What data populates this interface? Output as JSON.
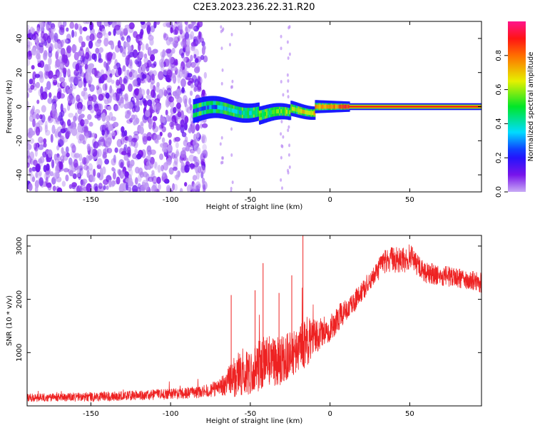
{
  "title": "C2E3.2023.236.22.31.R20",
  "colors": {
    "snr_line": "#ee2222",
    "noise_low": "#d9c4f7",
    "noise_high": "#7a1fe8",
    "band_core": "#ff1a1a",
    "band_edge": "#1a1aff"
  },
  "chart_data": [
    {
      "type": "heatmap",
      "xlabel": "Height of straight line (km)",
      "ylabel": "Frequency (Hz)",
      "xlim": [
        -190,
        95
      ],
      "ylim": [
        -50,
        50
      ],
      "xticks": [
        -150,
        -100,
        -50,
        0,
        50
      ],
      "yticks": [
        -40,
        -20,
        0,
        20,
        40
      ],
      "colorbar": {
        "label": "Normalized spectral amplitude",
        "range": [
          0.0,
          1.0
        ],
        "ticks": [
          0.0,
          0.2,
          0.4,
          0.6,
          0.8
        ],
        "colormap": "rainbow (violet to red)"
      },
      "description_regions": [
        {
          "x_range": [
            -190,
            -80
          ],
          "content": "broadband low-amplitude noise (violet)"
        },
        {
          "x_range": [
            -85,
            12
          ],
          "content": "narrow band near 0 Hz, amplitude rising from ~0.2 to ~0.9"
        },
        {
          "x_range": [
            12,
            95
          ],
          "content": "steady tone at 0 Hz, amplitude ~0.9"
        }
      ]
    },
    {
      "type": "line",
      "xlabel": "Height of straight line (km)",
      "ylabel": "SNR (10 * v/v)",
      "xlim": [
        -190,
        95
      ],
      "ylim": [
        0,
        3200
      ],
      "xticks": [
        -150,
        -100,
        -50,
        0,
        50
      ],
      "yticks": [
        1000,
        2000,
        3000
      ],
      "series": [
        {
          "x": [
            -190,
            -170,
            -150,
            -130,
            -110,
            -90,
            -80,
            -70,
            -65,
            -60,
            -55,
            -50,
            -45,
            -40,
            -35,
            -30,
            -25,
            -20,
            -15,
            -10,
            -5,
            0,
            5,
            10,
            15,
            20,
            25,
            30,
            35,
            40,
            45,
            50,
            55,
            60,
            70,
            80,
            90,
            95
          ],
          "y": [
            150,
            160,
            170,
            190,
            210,
            240,
            270,
            330,
            420,
            550,
            650,
            600,
            750,
            850,
            800,
            900,
            950,
            1050,
            1200,
            1300,
            1400,
            1450,
            1650,
            1800,
            1950,
            2150,
            2350,
            2550,
            2700,
            2750,
            2700,
            2800,
            2650,
            2500,
            2450,
            2400,
            2350,
            2300
          ],
          "noise_amplitude": [
            80,
            80,
            90,
            90,
            100,
            110,
            120,
            160,
            250,
            400,
            450,
            400,
            500,
            500,
            450,
            500,
            450,
            400,
            500,
            350,
            300,
            250,
            250,
            200,
            200,
            200,
            200,
            200,
            250,
            250,
            250,
            250,
            200,
            200,
            200,
            180,
            180,
            180
          ],
          "spikes": [
            {
              "x": -62,
              "y": 2080
            },
            {
              "x": -47,
              "y": 2170
            },
            {
              "x": -42,
              "y": 2680
            },
            {
              "x": -32,
              "y": 2120
            },
            {
              "x": -24,
              "y": 2450
            },
            {
              "x": -17,
              "y": 3220
            }
          ]
        }
      ]
    }
  ]
}
